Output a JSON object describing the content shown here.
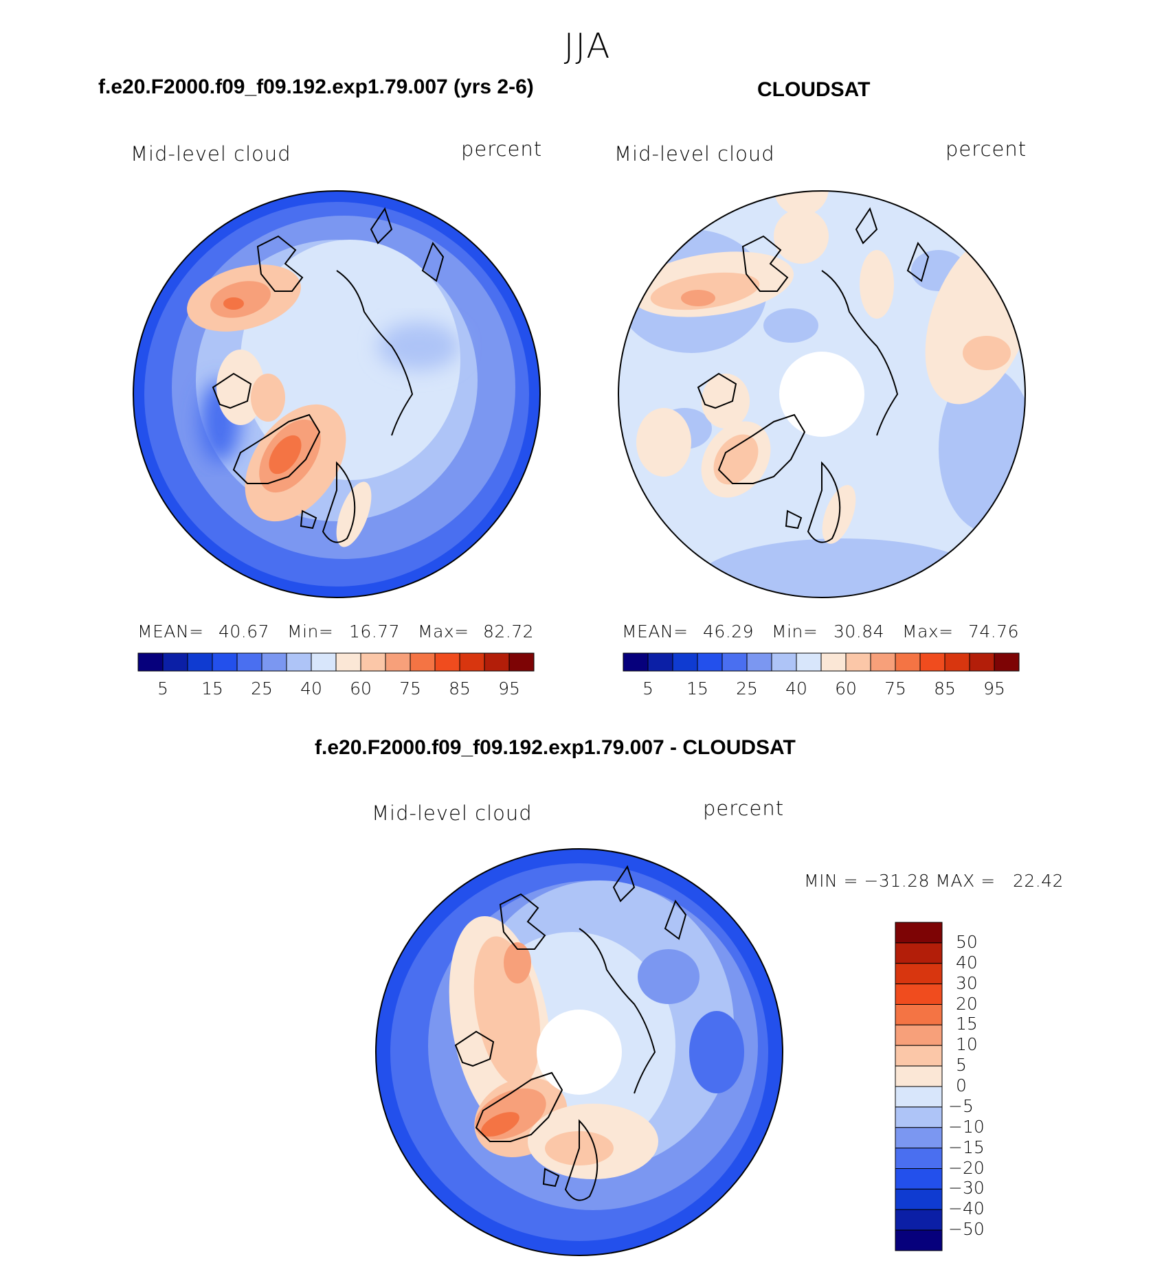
{
  "header": {
    "season": "JJA"
  },
  "panels": [
    {
      "title": "f.e20.F2000.f09_f09.192.exp1.79.007 (yrs 2-6)",
      "variable": "Mid-level cloud",
      "units": "percent",
      "stats": {
        "mean_label": "MEAN=",
        "mean": "40.67",
        "min_label": "Min=",
        "min": "16.77",
        "max_label": "Max=",
        "max": "82.72"
      },
      "missing_polar_cap": false
    },
    {
      "title": "CLOUDSAT",
      "variable": "Mid-level cloud",
      "units": "percent",
      "stats": {
        "mean_label": "MEAN=",
        "mean": "46.29",
        "min_label": "Min=",
        "min": "30.84",
        "max_label": "Max=",
        "max": "74.76"
      },
      "missing_polar_cap": true
    },
    {
      "title": "f.e20.F2000.f09_f09.192.exp1.79.007 - CLOUDSAT",
      "variable": "Mid-level cloud",
      "units": "percent",
      "stats_text": "MIN = −31.28 MAX =   22.42",
      "missing_polar_cap": true
    }
  ],
  "colorbars": {
    "absolute": {
      "colors": [
        "#06007c",
        "#0b1fa6",
        "#0f3bd1",
        "#2350ec",
        "#4a6ff0",
        "#7b97f1",
        "#aec4f7",
        "#d8e6fb",
        "#fbe7d6",
        "#fbc7a8",
        "#f7a07a",
        "#f47444",
        "#f04c1e",
        "#d8360f",
        "#b31e09",
        "#7d0405"
      ],
      "tick_labels": [
        "5",
        "15",
        "25",
        "40",
        "60",
        "75",
        "85",
        "95"
      ]
    },
    "difference": {
      "colors": [
        "#06007c",
        "#0b1fa6",
        "#0f3bd1",
        "#2350ec",
        "#4a6ff0",
        "#7b97f1",
        "#aec4f7",
        "#d8e6fb",
        "#fbe7d6",
        "#fbc7a8",
        "#f7a07a",
        "#f47444",
        "#f04c1e",
        "#d8360f",
        "#b31e09",
        "#7d0405"
      ],
      "tick_labels": [
        "50",
        "40",
        "30",
        "20",
        "15",
        "10",
        "5",
        "0",
        "−5",
        "−10",
        "−15",
        "−20",
        "−30",
        "−40",
        "−50"
      ]
    }
  }
}
